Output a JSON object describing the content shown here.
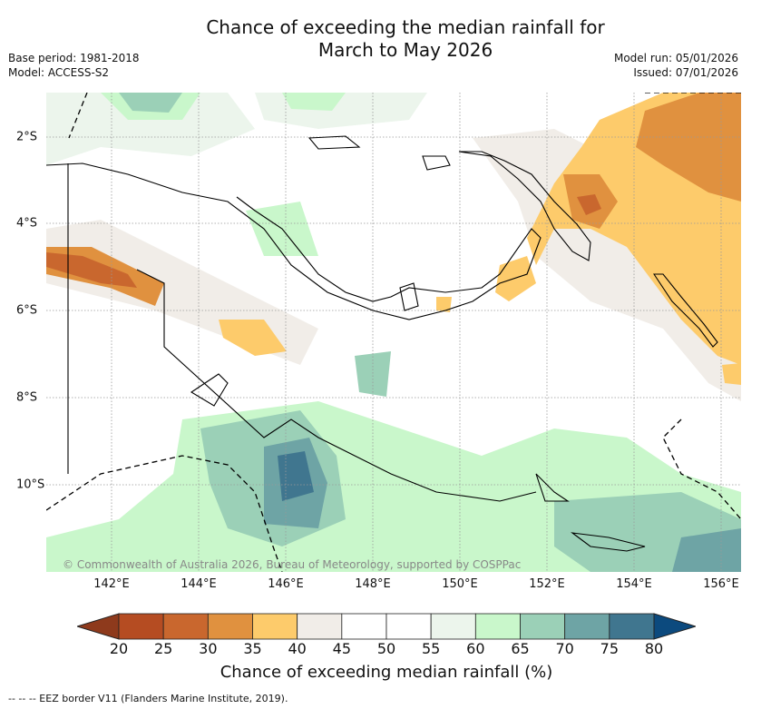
{
  "title_line1": "Chance of exceeding the median rainfall for",
  "title_line2": "March to May 2026",
  "meta_left": {
    "base_period": "Base period: 1981-2018",
    "model": "Model: ACCESS-S2"
  },
  "meta_right": {
    "model_run": "Model run: 05/01/2026",
    "issued": "Issued: 07/01/2026"
  },
  "copyright": "© Commonwealth of Australia 2026, Bureau of Meteorology, supported by COSPPac",
  "lon_labels": [
    "142°E",
    "144°E",
    "146°E",
    "148°E",
    "150°E",
    "152°E",
    "154°E",
    "156°E"
  ],
  "lat_labels": [
    "2°S",
    "4°S",
    "6°S",
    "8°S",
    "10°S"
  ],
  "colorbar": {
    "ticks": [
      "20",
      "25",
      "30",
      "35",
      "40",
      "45",
      "50",
      "55",
      "60",
      "65",
      "70",
      "75",
      "80"
    ],
    "low_color": "#8e3a1c",
    "high_color": "#0c4a7e",
    "colors": [
      "#b54c22",
      "#c9672e",
      "#e0913f",
      "#fdcb6b",
      "#f1ede8",
      "#ffffff",
      "#ffffff",
      "#ecf5ec",
      "#c9f7cb",
      "#9bd0b7",
      "#6ea4a5",
      "#40768f"
    ],
    "title": "Chance of exceeding median rainfall (%)"
  },
  "footer": "--  --  -- EEZ border V11 (Flanders Marine Institute, 2019)."
}
